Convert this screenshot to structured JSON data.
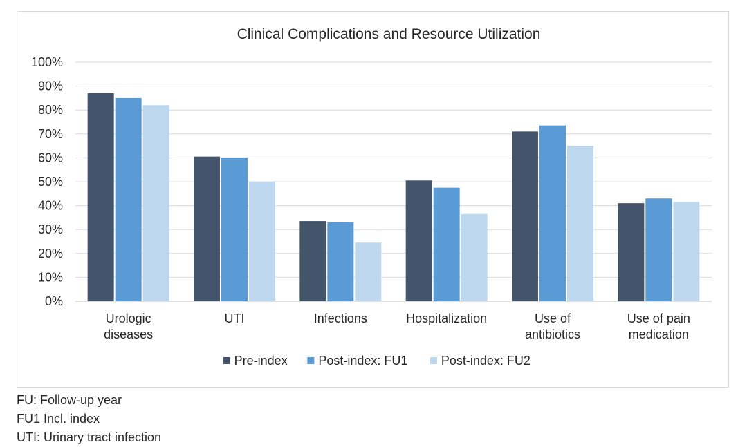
{
  "chart_data": {
    "type": "bar",
    "title": "Clinical Complications and Resource Utilization",
    "categories": [
      [
        "Urologic",
        "diseases"
      ],
      [
        "UTI"
      ],
      [
        "Infections"
      ],
      [
        "Hospitalization"
      ],
      [
        "Use of",
        "antibiotics"
      ],
      [
        "Use of pain",
        "medication"
      ]
    ],
    "series": [
      {
        "name": "Pre-index",
        "color": "#44546a",
        "values": [
          87,
          60.5,
          33.5,
          50.5,
          71,
          41
        ]
      },
      {
        "name": "Post-index: FU1",
        "color": "#5b9bd5",
        "values": [
          85,
          60,
          33,
          47.5,
          73.5,
          43
        ]
      },
      {
        "name": "Post-index: FU2",
        "color": "#bdd7ee",
        "values": [
          82,
          50,
          24.5,
          36.5,
          65,
          41.5
        ]
      }
    ],
    "ylim": [
      0,
      100
    ],
    "yticks": [
      "0%",
      "10%",
      "20%",
      "30%",
      "40%",
      "50%",
      "60%",
      "70%",
      "80%",
      "90%",
      "100%"
    ],
    "grid": true,
    "gridline_color": "#d9d9d9",
    "legend_placement": "bottom",
    "xlabel": "",
    "ylabel": ""
  },
  "footnotes": [
    "FU: Follow-up year",
    "FU1 Incl. index",
    "UTI: Urinary tract infection"
  ]
}
